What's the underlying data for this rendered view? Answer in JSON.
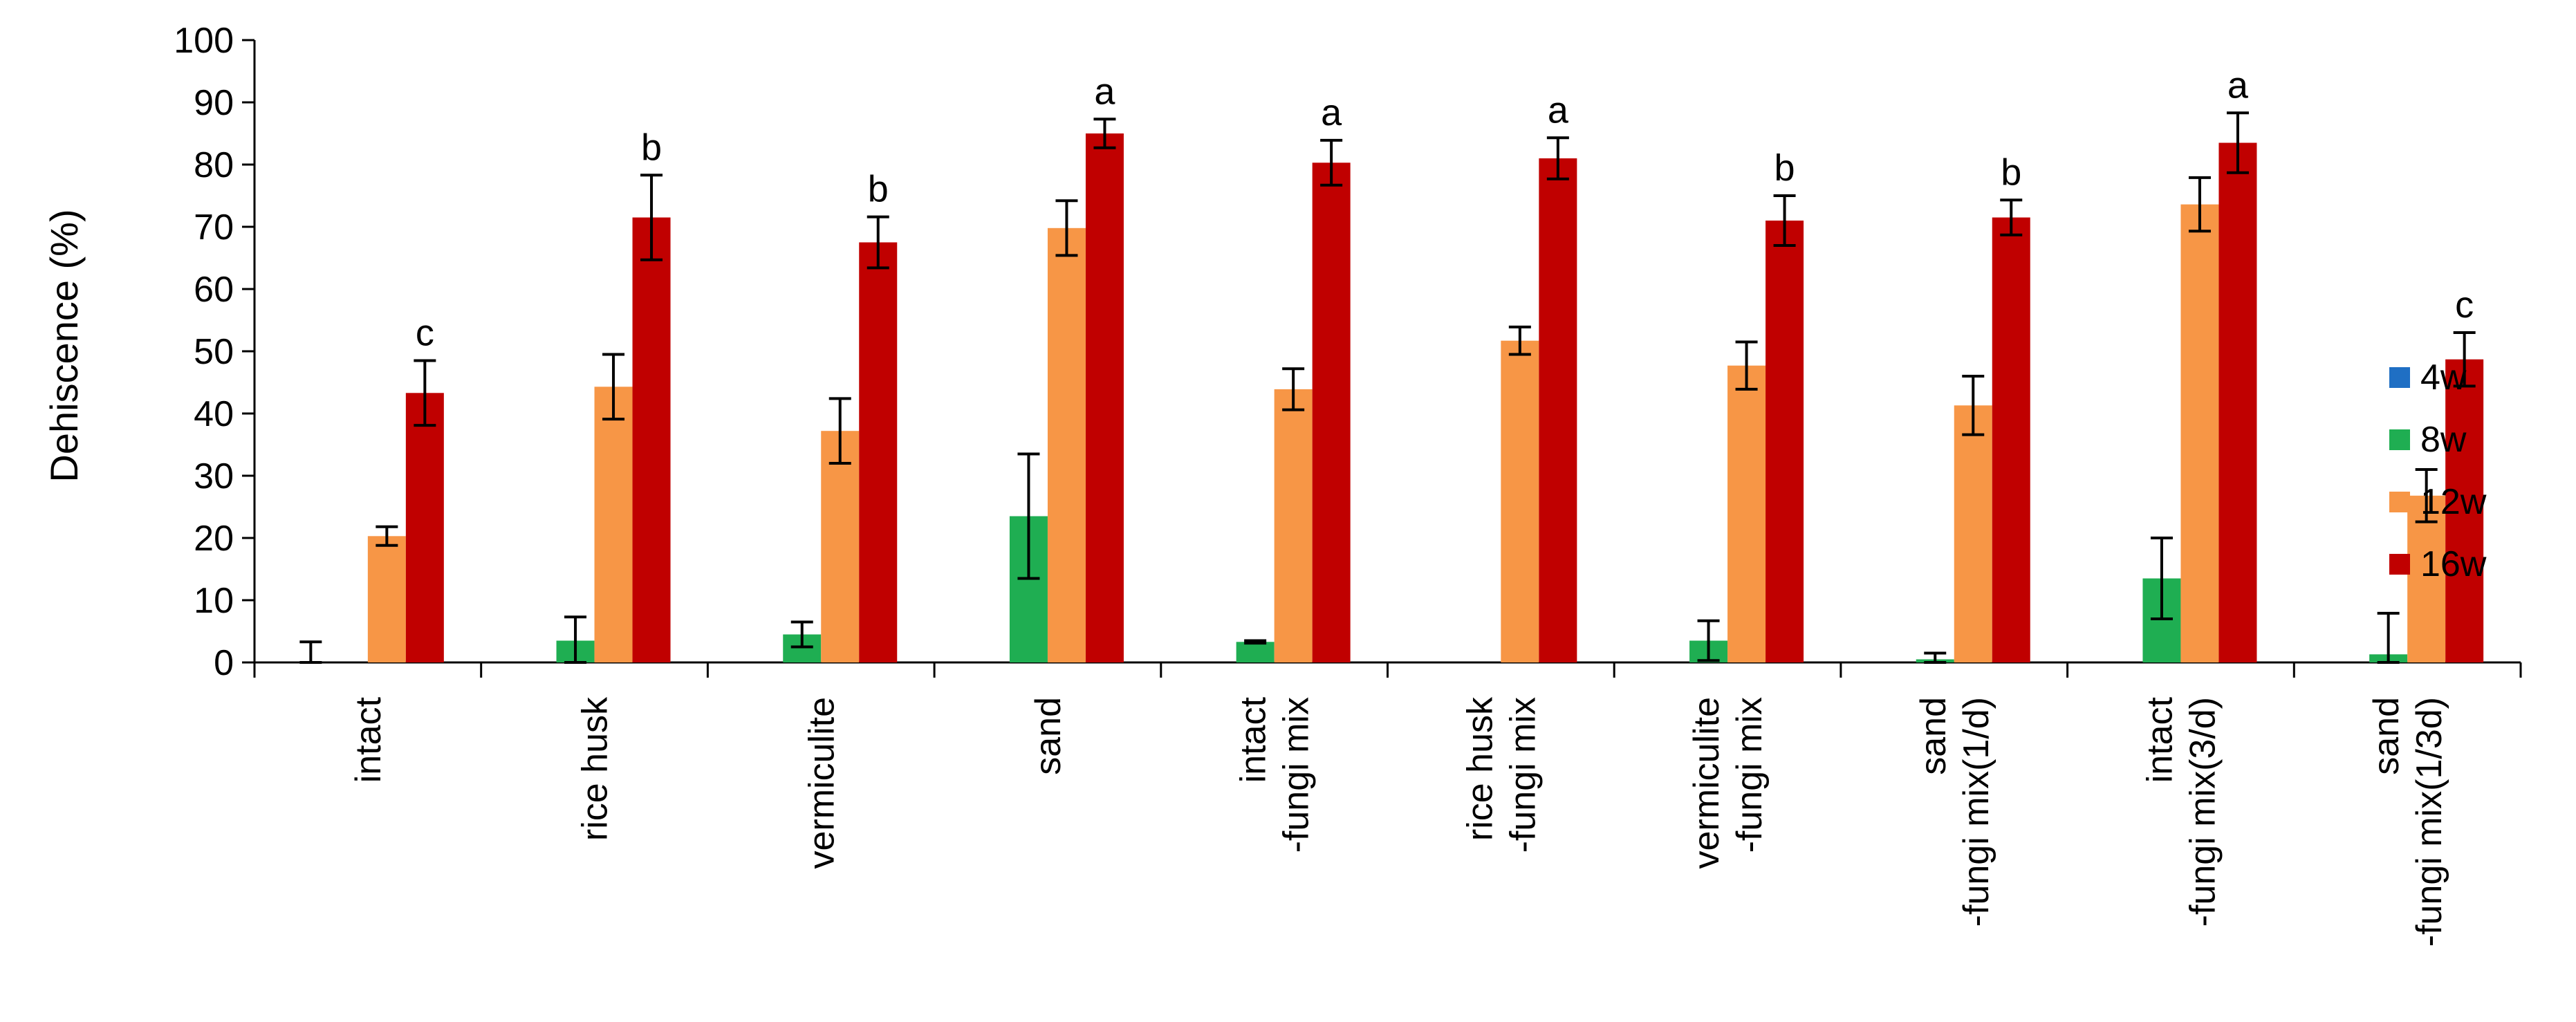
{
  "chart_data": {
    "type": "bar",
    "ylabel": "Dehiscence (%)",
    "ylim": [
      0,
      100
    ],
    "yticks": [
      "0",
      "10",
      "20",
      "30",
      "40",
      "50",
      "60",
      "70",
      "80",
      "90",
      "100"
    ],
    "grid": false,
    "legend_position": "right",
    "categories": [
      [
        "intact"
      ],
      [
        "rice husk"
      ],
      [
        "vermiculite"
      ],
      [
        "sand"
      ],
      [
        "intact",
        "-fungi mix"
      ],
      [
        "rice husk",
        "-fungi mix"
      ],
      [
        "vermiculite",
        "-fungi mix"
      ],
      [
        "sand",
        "-fungi mix(1/d)"
      ],
      [
        "intact",
        "-fungi mix(3/d)"
      ],
      [
        "sand",
        "-fungi mix(1/3d)"
      ]
    ],
    "series": [
      {
        "name": "4w",
        "color": "#1f6fc4",
        "values": [
          0,
          0,
          0,
          0,
          0,
          0,
          0,
          0,
          0,
          0
        ],
        "errors": [
          3.3,
          0,
          0,
          0,
          0,
          0,
          0,
          0,
          0,
          0
        ]
      },
      {
        "name": "8w",
        "color": "#1fae52",
        "values": [
          0,
          3.5,
          4.5,
          23.5,
          3.3,
          0,
          3.5,
          0.5,
          13.5,
          1.3
        ],
        "errors": [
          0,
          3.8,
          2,
          10,
          0.2,
          0,
          3.2,
          1,
          6.5,
          6.6
        ]
      },
      {
        "name": "12w",
        "color": "#f79646",
        "values": [
          20.3,
          44.3,
          37.2,
          69.8,
          43.9,
          51.7,
          47.7,
          41.3,
          73.6,
          26.8
        ],
        "errors": [
          1.5,
          5.2,
          5.2,
          4.4,
          3.3,
          2.2,
          3.8,
          4.7,
          4.3,
          4.2
        ]
      },
      {
        "name": "16w",
        "color": "#c00000",
        "values": [
          43.3,
          71.5,
          67.5,
          85,
          80.3,
          81,
          71,
          71.5,
          83.5,
          48.7
        ],
        "errors": [
          5.2,
          6.8,
          4.1,
          2.3,
          3.6,
          3.3,
          4,
          2.8,
          4.8,
          4.3
        ]
      }
    ],
    "significance": [
      "c",
      "b",
      "b",
      "a",
      "a",
      "a",
      "b",
      "b",
      "a",
      "c"
    ]
  }
}
